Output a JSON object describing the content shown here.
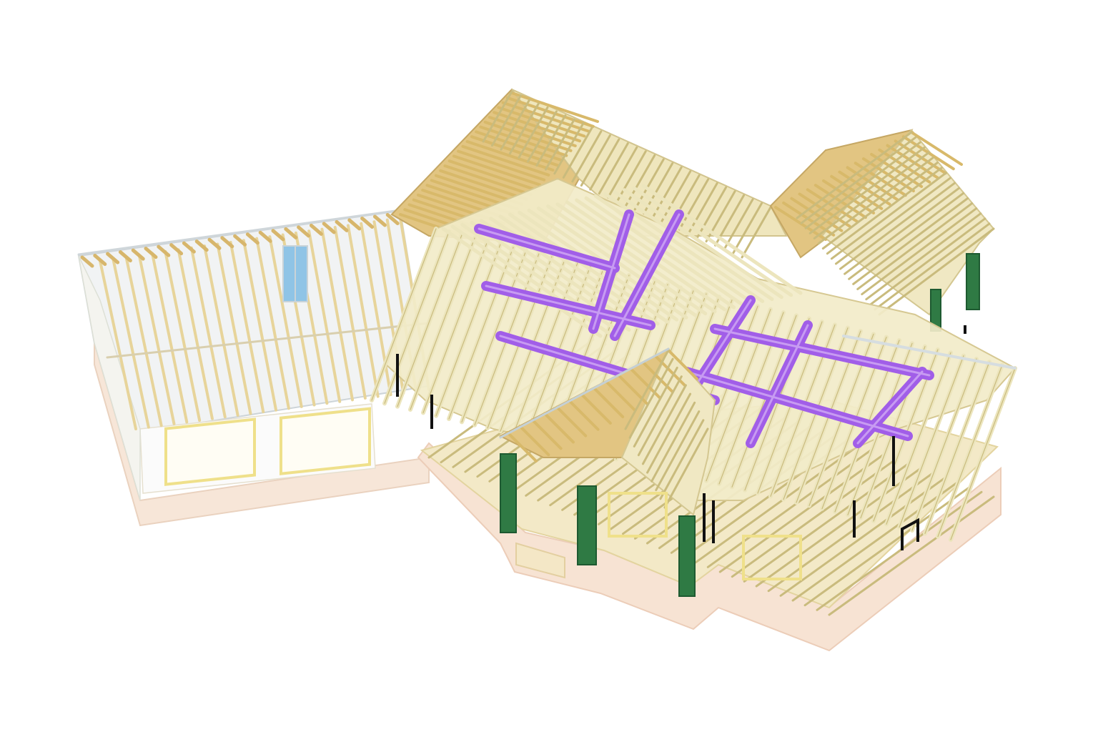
{
  "figure": {
    "kind": "isometric-3d-framing-model",
    "subject": "house-roof-framing",
    "has_text": false
  },
  "colors": {
    "background": "#ffffff",
    "rafter": "#e9e2b4",
    "rafter_edge": "#c9bb7d",
    "rafter_dark": "#d8b96a",
    "sheathing": "#efe7bf",
    "purlin": "#a15ee8",
    "column": "#2f7a44",
    "column_dark": "#1e5a31",
    "wall_glass": "#e6ebee",
    "foundation": "#f6e3d4",
    "floor": "#f1e6c2",
    "window_frame": "#efe08a",
    "window_glass": "#8fc4e6",
    "bracket": "#111111"
  },
  "components": [
    {
      "name": "main-hip-roof",
      "material": "wood-rafters"
    },
    {
      "name": "rear-gable-roof",
      "material": "wood-rafters"
    },
    {
      "name": "right-gable-roof",
      "material": "wood-rafters"
    },
    {
      "name": "porch-gable-roof",
      "material": "wood-rafters"
    },
    {
      "name": "garage-wing",
      "material": "studs-and-glass"
    },
    {
      "name": "purple-purlins",
      "material": "purlin-bracing"
    },
    {
      "name": "green-porch-columns",
      "material": "timber-columns"
    },
    {
      "name": "deck-and-foundation",
      "material": "joists-and-slab"
    }
  ]
}
